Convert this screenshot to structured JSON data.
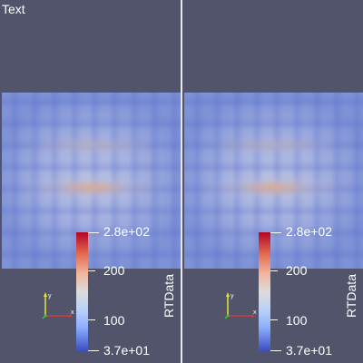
{
  "views": [
    {
      "overlay_text": "Text",
      "colorbar": {
        "title": "RTData",
        "labels": [
          "2.8e+02",
          "200",
          "100",
          "3.7e+01"
        ],
        "range": [
          37,
          280
        ]
      },
      "axes": {
        "x_label": "x",
        "y_label": "y",
        "z_label": "z"
      }
    },
    {
      "overlay_text": "",
      "colorbar": {
        "title": "RTData",
        "labels": [
          "2.8e+02",
          "200",
          "100",
          "3.7e+01"
        ],
        "range": [
          37,
          280
        ]
      },
      "axes": {
        "x_label": "x",
        "y_label": "y",
        "z_label": "z"
      }
    }
  ],
  "colors": {
    "background": "#51546a",
    "splitter": "#e8e8ee",
    "colormap_high": "#b40426",
    "colormap_mid": "#dddcdc",
    "colormap_low": "#3b4cc0",
    "axis_x": "#d23c3c",
    "axis_y": "#e6e632",
    "axis_z": "#32c832"
  }
}
